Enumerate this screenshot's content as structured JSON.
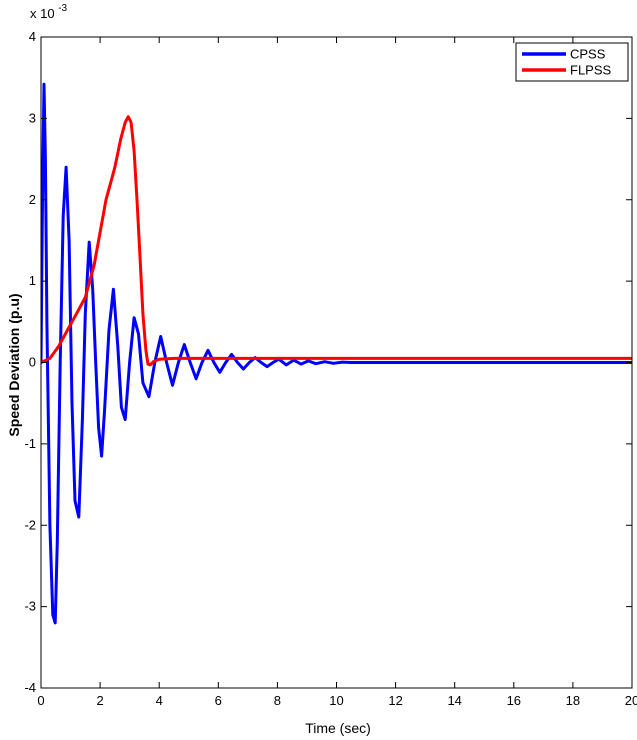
{
  "chart_data": {
    "type": "line",
    "title": "",
    "xlabel": "Time (sec)",
    "ylabel": "Speed Deviation (p.u)",
    "xlim": [
      0,
      20
    ],
    "ylim": [
      -4,
      4
    ],
    "x_ticks": [
      0,
      2,
      4,
      6,
      8,
      10,
      12,
      14,
      16,
      18,
      20
    ],
    "y_ticks": [
      -4,
      -3,
      -2,
      -1,
      0,
      1,
      2,
      3,
      4
    ],
    "y_multiplier_text": "x 10",
    "y_multiplier_exp": "-3",
    "grid": false,
    "legend_position": "top-right",
    "series": [
      {
        "name": "CPSS",
        "color": "#0000ff",
        "x": [
          0,
          0.05,
          0.1,
          0.15,
          0.2,
          0.3,
          0.4,
          0.48,
          0.55,
          0.65,
          0.75,
          0.85,
          0.95,
          1.05,
          1.15,
          1.28,
          1.4,
          1.5,
          1.63,
          1.75,
          1.85,
          1.95,
          2.05,
          2.15,
          2.3,
          2.45,
          2.6,
          2.72,
          2.85,
          3.0,
          3.15,
          3.3,
          3.45,
          3.65,
          3.85,
          4.05,
          4.25,
          4.45,
          4.65,
          4.85,
          5.05,
          5.25,
          5.45,
          5.65,
          5.85,
          6.05,
          6.25,
          6.45,
          6.65,
          6.85,
          7.05,
          7.25,
          7.45,
          7.65,
          7.85,
          8.05,
          8.3,
          8.55,
          8.8,
          9.05,
          9.3,
          9.6,
          9.9,
          10.2,
          10.5,
          11,
          12,
          14,
          16,
          18,
          20
        ],
        "y": [
          0,
          2.0,
          3.42,
          2.5,
          0.5,
          -2.0,
          -3.1,
          -3.2,
          -2.2,
          0.0,
          1.8,
          2.4,
          1.5,
          -0.5,
          -1.7,
          -1.9,
          -0.7,
          0.6,
          1.48,
          0.9,
          0.0,
          -0.8,
          -1.15,
          -0.6,
          0.4,
          0.9,
          0.2,
          -0.55,
          -0.7,
          0.0,
          0.55,
          0.35,
          -0.25,
          -0.42,
          0.0,
          0.32,
          0.0,
          -0.28,
          0.0,
          0.22,
          0.0,
          -0.2,
          0.0,
          0.15,
          0.0,
          -0.12,
          0.0,
          0.1,
          0.0,
          -0.08,
          0.0,
          0.06,
          0.0,
          -0.05,
          0.0,
          0.04,
          -0.03,
          0.03,
          -0.02,
          0.02,
          -0.015,
          0.01,
          -0.01,
          0.005,
          0.0,
          0.0,
          0.0,
          0.0,
          0.0,
          0.0,
          0.0
        ]
      },
      {
        "name": "FLPSS",
        "color": "#ff0000",
        "x": [
          0,
          0.3,
          0.6,
          0.9,
          1.2,
          1.5,
          1.8,
          2.0,
          2.2,
          2.5,
          2.7,
          2.85,
          2.95,
          3.05,
          3.15,
          3.25,
          3.35,
          3.45,
          3.55,
          3.62,
          3.7,
          3.8,
          4.0,
          4.5,
          5,
          6,
          8,
          10,
          12,
          14,
          16,
          18,
          20
        ],
        "y": [
          0,
          0.05,
          0.2,
          0.4,
          0.6,
          0.8,
          1.2,
          1.6,
          2.0,
          2.4,
          2.75,
          2.95,
          3.02,
          2.95,
          2.6,
          2.0,
          1.3,
          0.6,
          0.15,
          -0.02,
          -0.03,
          0.01,
          0.04,
          0.05,
          0.05,
          0.05,
          0.05,
          0.05,
          0.05,
          0.05,
          0.05,
          0.05,
          0.05
        ]
      }
    ]
  }
}
